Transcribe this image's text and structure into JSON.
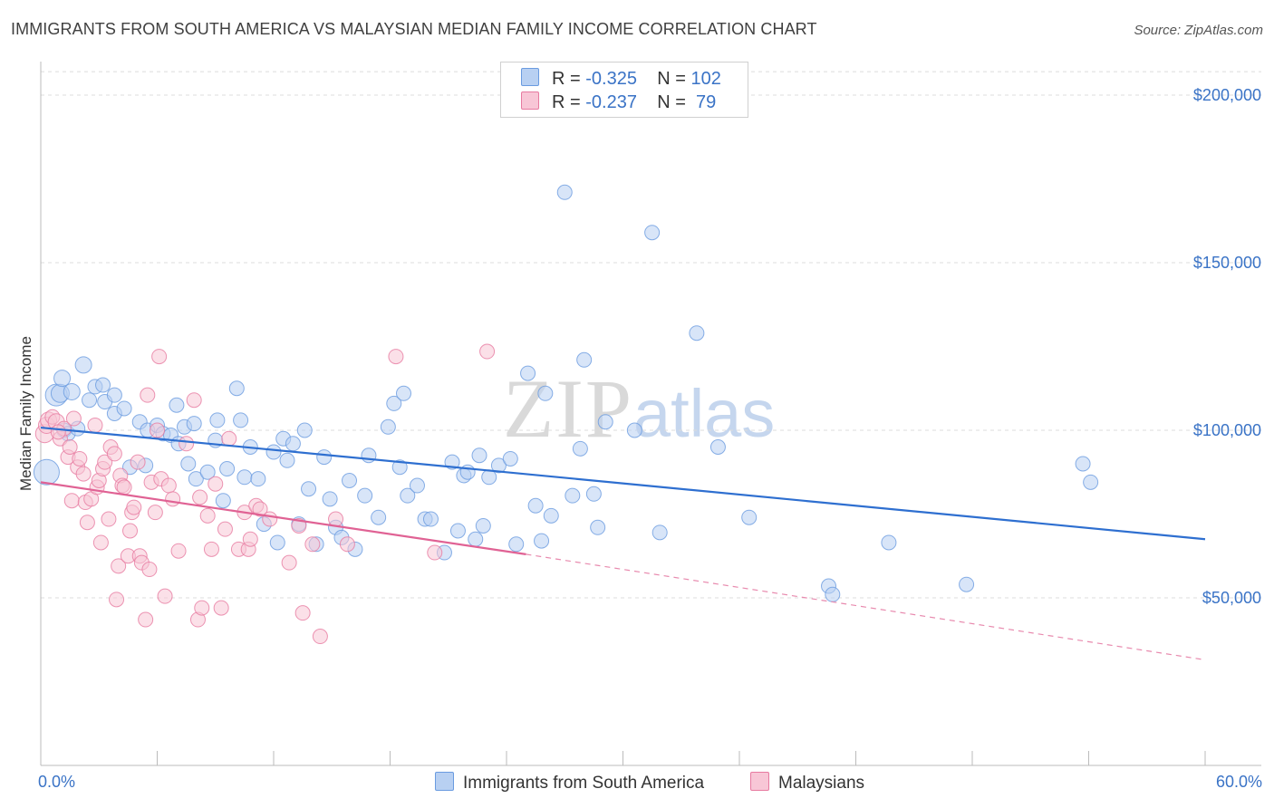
{
  "title": "IMMIGRANTS FROM SOUTH AMERICA VS MALAYSIAN MEDIAN FAMILY INCOME CORRELATION CHART",
  "source": "Source: ZipAtlas.com",
  "watermark": {
    "zip": "ZIP",
    "atlas": "atlas"
  },
  "legend": {
    "rows": [
      {
        "r_label": "R = ",
        "r_value": "-0.325",
        "n_label": "N = ",
        "n_value": "102",
        "color": "#9fc0ec"
      },
      {
        "r_label": "R = ",
        "r_value": "-0.237",
        "n_label": "N = ",
        "n_value": " 79",
        "color": "#f3b5ca"
      }
    ]
  },
  "bottom_legend": [
    {
      "label": "Immigrants from South America",
      "color": "#b8d0f2"
    },
    {
      "label": "Malaysians",
      "color": "#f8c6d6"
    }
  ],
  "chart_data": {
    "type": "scatter",
    "title": "IMMIGRANTS FROM SOUTH AMERICA VS MALAYSIAN MEDIAN FAMILY INCOME CORRELATION CHART",
    "xlabel": "",
    "ylabel": "Median Family Income",
    "xlim": [
      0,
      60
    ],
    "ylim": [
      0,
      210000
    ],
    "x_tick_labels": [
      "0.0%",
      "60.0%"
    ],
    "y_ticks": [
      50000,
      100000,
      150000,
      200000
    ],
    "y_tick_labels": [
      "$50,000",
      "$100,000",
      "$150,000",
      "$200,000"
    ],
    "grid": true,
    "legend_position": "top-center",
    "series": [
      {
        "name": "Immigrants from South America",
        "color": "#6a9be0",
        "fill": "#b8d0f2",
        "r": -0.325,
        "n": 102,
        "trend": {
          "x": [
            0,
            60
          ],
          "y": [
            100800,
            67500
          ]
        },
        "points": [
          [
            0.3,
            87500,
            14
          ],
          [
            0.8,
            110500,
            12
          ],
          [
            1.0,
            111000,
            10
          ],
          [
            1.1,
            115500,
            9
          ],
          [
            1.2,
            100000,
            8
          ],
          [
            1.4,
            99000,
            8
          ],
          [
            1.6,
            111500,
            9
          ],
          [
            2.2,
            119500,
            9
          ],
          [
            2.5,
            109000,
            8
          ],
          [
            2.8,
            113000,
            8
          ],
          [
            3.2,
            113500,
            8
          ],
          [
            3.3,
            108500,
            8
          ],
          [
            3.8,
            110500,
            8
          ],
          [
            3.8,
            105000,
            8
          ],
          [
            4.3,
            106500,
            8
          ],
          [
            4.6,
            89000,
            8
          ],
          [
            5.1,
            102500,
            8
          ],
          [
            5.4,
            89500,
            8
          ],
          [
            5.5,
            100000,
            8
          ],
          [
            6.0,
            101500,
            8
          ],
          [
            6.3,
            99000,
            8
          ],
          [
            6.7,
            98500,
            8
          ],
          [
            7.0,
            107500,
            8
          ],
          [
            7.1,
            96000,
            8
          ],
          [
            7.4,
            101000,
            8
          ],
          [
            7.6,
            90000,
            8
          ],
          [
            7.9,
            102000,
            8
          ],
          [
            8.0,
            85500,
            8
          ],
          [
            8.6,
            87500,
            8
          ],
          [
            9.0,
            97000,
            8
          ],
          [
            9.1,
            103000,
            8
          ],
          [
            9.4,
            79000,
            8
          ],
          [
            9.6,
            88500,
            8
          ],
          [
            10.1,
            112500,
            8
          ],
          [
            10.3,
            103000,
            8
          ],
          [
            10.5,
            86000,
            8
          ],
          [
            10.8,
            95000,
            8
          ],
          [
            11.2,
            85500,
            8
          ],
          [
            11.5,
            72000,
            8
          ],
          [
            12.0,
            93500,
            8
          ],
          [
            12.2,
            66500,
            8
          ],
          [
            12.5,
            97500,
            8
          ],
          [
            12.7,
            91000,
            8
          ],
          [
            13.0,
            96000,
            8
          ],
          [
            13.3,
            72000,
            8
          ],
          [
            13.6,
            100000,
            8
          ],
          [
            13.8,
            82500,
            8
          ],
          [
            14.2,
            66000,
            8
          ],
          [
            14.6,
            92000,
            8
          ],
          [
            14.9,
            79500,
            8
          ],
          [
            15.2,
            71000,
            8
          ],
          [
            15.5,
            68000,
            8
          ],
          [
            15.9,
            85000,
            8
          ],
          [
            16.2,
            64500,
            8
          ],
          [
            16.7,
            80500,
            8
          ],
          [
            16.9,
            92500,
            8
          ],
          [
            17.4,
            74000,
            8
          ],
          [
            17.9,
            101000,
            8
          ],
          [
            18.2,
            108000,
            8
          ],
          [
            18.5,
            89000,
            8
          ],
          [
            18.7,
            111000,
            8
          ],
          [
            18.9,
            80500,
            8
          ],
          [
            19.4,
            83500,
            8
          ],
          [
            19.8,
            73500,
            8
          ],
          [
            20.1,
            73500,
            8
          ],
          [
            20.8,
            63500,
            8
          ],
          [
            21.2,
            90500,
            8
          ],
          [
            21.5,
            70000,
            8
          ],
          [
            21.8,
            86500,
            8
          ],
          [
            22.0,
            87500,
            8
          ],
          [
            22.4,
            67500,
            8
          ],
          [
            22.6,
            92500,
            8
          ],
          [
            22.8,
            71500,
            8
          ],
          [
            23.1,
            86000,
            8
          ],
          [
            23.6,
            89500,
            8
          ],
          [
            24.2,
            91500,
            8
          ],
          [
            24.5,
            66000,
            8
          ],
          [
            25.1,
            117000,
            8
          ],
          [
            25.5,
            77500,
            8
          ],
          [
            25.8,
            67000,
            8
          ],
          [
            26.0,
            111000,
            8
          ],
          [
            26.3,
            74500,
            8
          ],
          [
            27.0,
            171000,
            8
          ],
          [
            27.4,
            80500,
            8
          ],
          [
            27.8,
            94500,
            8
          ],
          [
            28.0,
            121000,
            8
          ],
          [
            28.5,
            81000,
            8
          ],
          [
            28.7,
            71000,
            8
          ],
          [
            29.1,
            102500,
            8
          ],
          [
            30.6,
            100000,
            8
          ],
          [
            31.5,
            159000,
            8
          ],
          [
            31.9,
            69500,
            8
          ],
          [
            33.8,
            129000,
            8
          ],
          [
            34.9,
            95000,
            8
          ],
          [
            36.5,
            74000,
            8
          ],
          [
            40.6,
            53500,
            8
          ],
          [
            40.8,
            51000,
            8
          ],
          [
            43.7,
            66500,
            8
          ],
          [
            47.7,
            54000,
            8
          ],
          [
            53.7,
            90000,
            8
          ],
          [
            54.1,
            84500,
            8
          ],
          [
            1.9,
            100500,
            8
          ]
        ]
      },
      {
        "name": "Malaysians",
        "color": "#e77aa0",
        "fill": "#f8c6d6",
        "r": -0.237,
        "n": 79,
        "trend": {
          "x": [
            0,
            25
          ],
          "y": [
            84500,
            63000
          ]
        },
        "trend_dashed": {
          "x": [
            25,
            60
          ],
          "y": [
            63000,
            31500
          ]
        },
        "points": [
          [
            0.2,
            99000,
            10
          ],
          [
            0.3,
            101500,
            9
          ],
          [
            0.4,
            103000,
            9
          ],
          [
            0.6,
            104000,
            8
          ],
          [
            0.8,
            102500,
            9
          ],
          [
            1.0,
            97500,
            8
          ],
          [
            1.2,
            100500,
            8
          ],
          [
            1.4,
            92000,
            8
          ],
          [
            1.5,
            95000,
            8
          ],
          [
            1.6,
            79000,
            8
          ],
          [
            1.7,
            103500,
            8
          ],
          [
            1.9,
            89000,
            8
          ],
          [
            2.0,
            91500,
            8
          ],
          [
            2.2,
            87000,
            8
          ],
          [
            2.3,
            78500,
            8
          ],
          [
            2.4,
            72500,
            8
          ],
          [
            2.6,
            79500,
            8
          ],
          [
            2.8,
            101500,
            8
          ],
          [
            2.9,
            83000,
            8
          ],
          [
            3.0,
            85000,
            8
          ],
          [
            3.1,
            66500,
            8
          ],
          [
            3.2,
            88500,
            8
          ],
          [
            3.3,
            90500,
            8
          ],
          [
            3.5,
            73500,
            8
          ],
          [
            3.6,
            95000,
            8
          ],
          [
            3.8,
            93000,
            8
          ],
          [
            3.9,
            49500,
            8
          ],
          [
            4.0,
            59500,
            8
          ],
          [
            4.1,
            86500,
            8
          ],
          [
            4.2,
            83500,
            8
          ],
          [
            4.3,
            83000,
            8
          ],
          [
            4.5,
            62500,
            8
          ],
          [
            4.6,
            70000,
            8
          ],
          [
            4.7,
            75500,
            8
          ],
          [
            4.8,
            77000,
            8
          ],
          [
            5.0,
            90500,
            8
          ],
          [
            5.1,
            62500,
            8
          ],
          [
            5.2,
            60500,
            8
          ],
          [
            5.4,
            43500,
            8
          ],
          [
            5.5,
            110500,
            8
          ],
          [
            5.6,
            58500,
            8
          ],
          [
            5.7,
            84500,
            8
          ],
          [
            5.9,
            75500,
            8
          ],
          [
            6.0,
            100000,
            8
          ],
          [
            6.1,
            122000,
            8
          ],
          [
            6.2,
            85500,
            8
          ],
          [
            6.4,
            50500,
            8
          ],
          [
            6.6,
            83500,
            8
          ],
          [
            6.8,
            79500,
            8
          ],
          [
            7.1,
            64000,
            8
          ],
          [
            7.5,
            96000,
            8
          ],
          [
            7.9,
            109000,
            8
          ],
          [
            8.1,
            43500,
            8
          ],
          [
            8.2,
            80000,
            8
          ],
          [
            8.3,
            47000,
            8
          ],
          [
            8.6,
            74500,
            8
          ],
          [
            8.8,
            64500,
            8
          ],
          [
            9.0,
            84000,
            8
          ],
          [
            9.3,
            47000,
            8
          ],
          [
            9.5,
            70500,
            8
          ],
          [
            9.7,
            97500,
            8
          ],
          [
            10.2,
            64500,
            8
          ],
          [
            10.5,
            75500,
            8
          ],
          [
            10.7,
            64500,
            8
          ],
          [
            10.8,
            67500,
            8
          ],
          [
            11.1,
            77500,
            8
          ],
          [
            11.3,
            76500,
            8
          ],
          [
            11.8,
            73500,
            8
          ],
          [
            12.8,
            60500,
            8
          ],
          [
            13.3,
            71500,
            8
          ],
          [
            13.5,
            45500,
            8
          ],
          [
            14.0,
            66000,
            8
          ],
          [
            14.4,
            38500,
            8
          ],
          [
            15.2,
            73500,
            8
          ],
          [
            15.8,
            66000,
            8
          ],
          [
            18.3,
            122000,
            8
          ],
          [
            20.3,
            63500,
            8
          ],
          [
            23.0,
            123500,
            8
          ],
          [
            0.9,
            99500,
            8
          ]
        ]
      }
    ]
  }
}
